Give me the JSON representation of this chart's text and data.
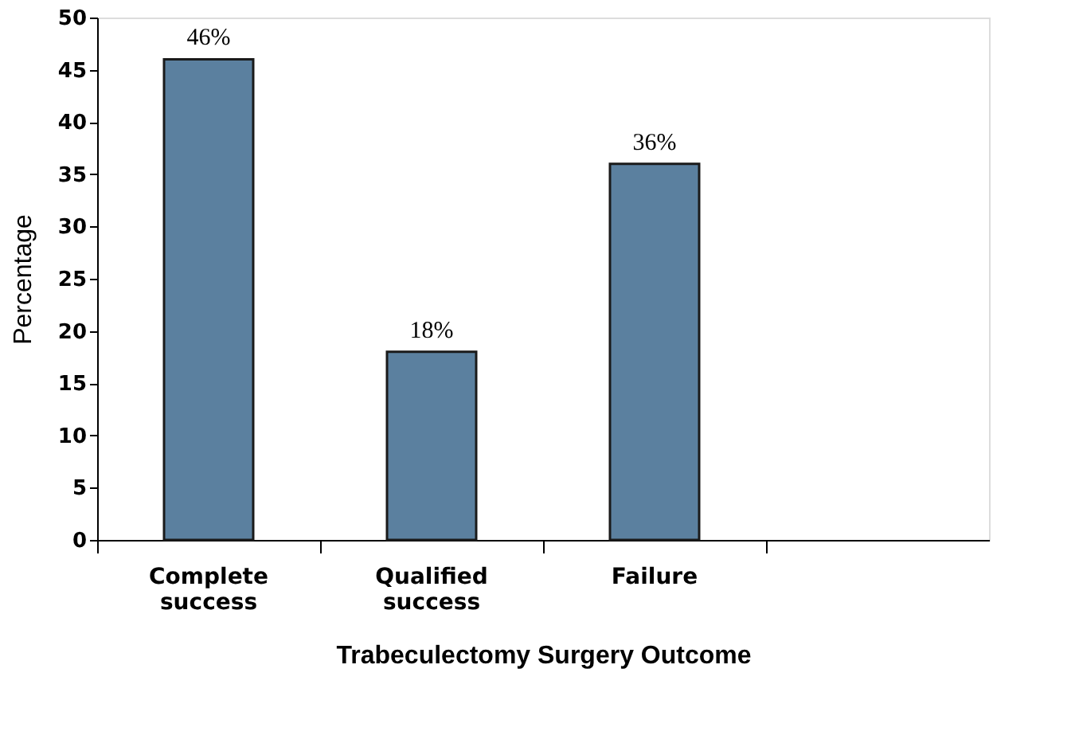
{
  "chart_data": {
    "type": "bar",
    "xlabel": "Trabeculectomy Surgery Outcome",
    "ylabel": "Percentage",
    "categories": [
      "Complete success",
      "Qualified success",
      "Failure",
      null
    ],
    "values": [
      46,
      18,
      36,
      null
    ],
    "value_labels": [
      "46%",
      "18%",
      "36%",
      null
    ],
    "color": "#5b809f",
    "ylim": [
      0,
      50
    ],
    "yticks": [
      0,
      5,
      10,
      15,
      20,
      25,
      30,
      35,
      40,
      45,
      50
    ],
    "grid": false
  }
}
